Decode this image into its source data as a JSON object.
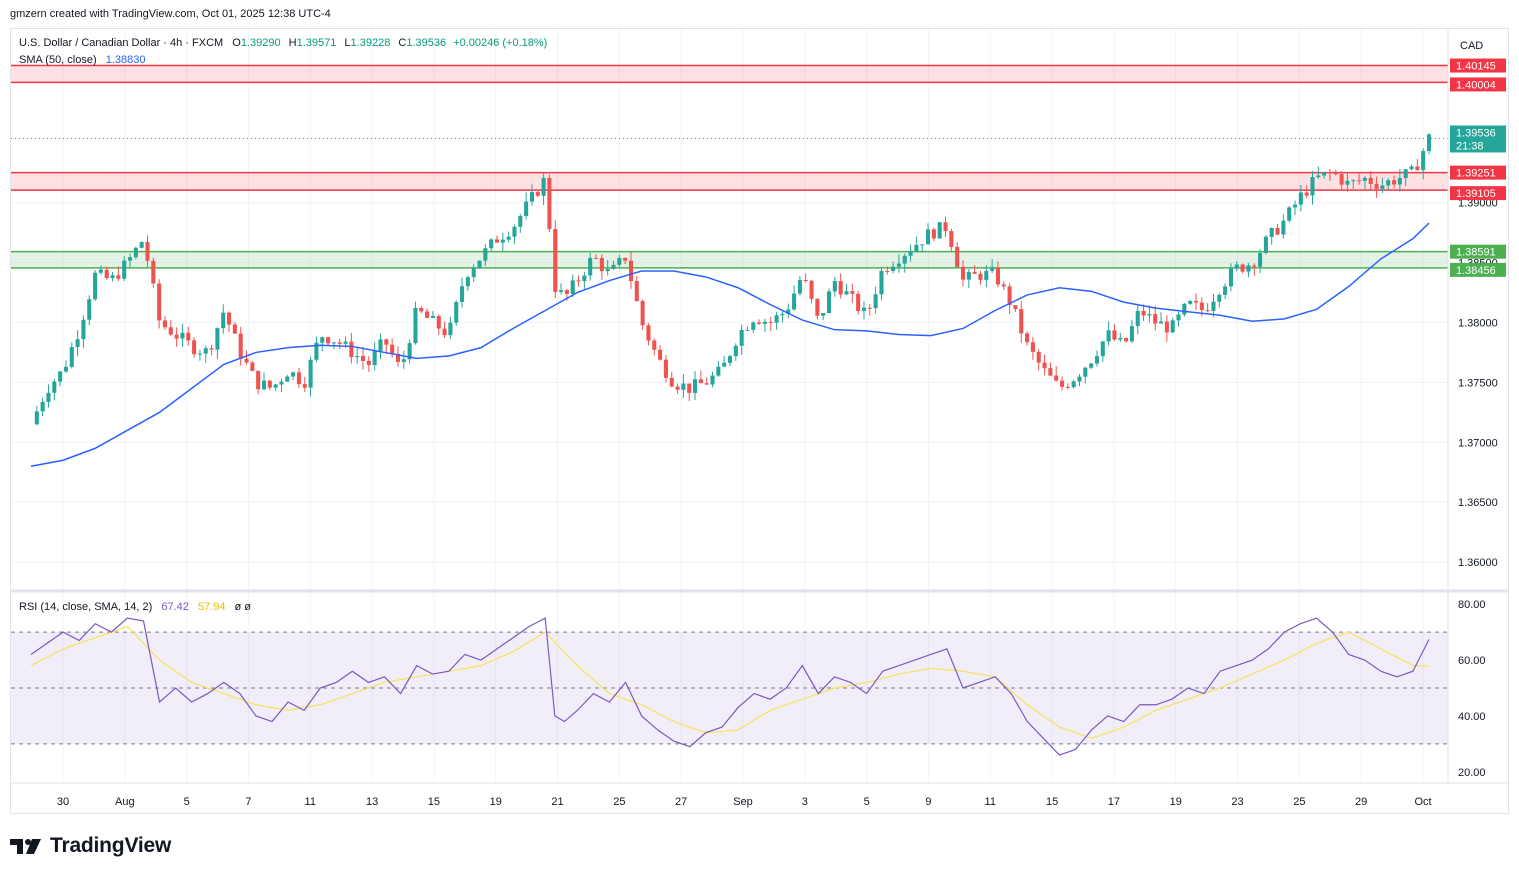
{
  "caption": "gmzern created with TradingView.com, Oct 01, 2025 12:38 UTC-4",
  "currency": "CAD",
  "brand": "TradingView",
  "legend": {
    "symbol": "U.S. Dollar / Canadian Dollar · 4h · FXCM",
    "o_label": "O",
    "o": "1.39290",
    "h_label": "H",
    "h": "1.39571",
    "l_label": "L",
    "l": "1.39228",
    "c_label": "C",
    "c": "1.39536",
    "change": "+0.00246 (+0.18%)",
    "sma_label": "SMA (50, close)",
    "sma_value": "1.38830",
    "rsi_label": "RSI (14, close, SMA, 14, 2)",
    "rsi_value": "67.42",
    "rsi_sma_value": "57.94",
    "rsi_extra": "ø ø"
  },
  "colors": {
    "up": "#26a69a",
    "down": "#ef5350",
    "sma": "#2962ff",
    "rsi": "#7e57c2",
    "rsi_ma": "#f7e35b",
    "resistance": "#f23645",
    "support": "#4caf50"
  },
  "chart_data": [
    {
      "type": "candlestick",
      "ylim": [
        1.3575,
        1.4045
      ],
      "y_ticks": [
        "1.36000",
        "1.36500",
        "1.37000",
        "1.37500",
        "1.38000",
        "1.38500",
        "1.39000"
      ],
      "x_ticks": [
        "30",
        "Aug",
        "5",
        "7",
        "11",
        "13",
        "15",
        "19",
        "21",
        "25",
        "27",
        "Sep",
        "3",
        "5",
        "9",
        "11",
        "15",
        "17",
        "19",
        "23",
        "25",
        "29",
        "Oct"
      ],
      "price_labels": [
        {
          "text": "1.40145",
          "value": 1.40145,
          "kind": "resistance"
        },
        {
          "text": "1.40004",
          "value": 1.40004,
          "kind": "resistance"
        },
        {
          "text": "1.39536",
          "value": 1.39536,
          "kind": "last"
        },
        {
          "text": "21:38",
          "value": 1.39536,
          "kind": "countdown"
        },
        {
          "text": "1.39251",
          "value": 1.39251,
          "kind": "resistance"
        },
        {
          "text": "1.39105",
          "value": 1.39105,
          "kind": "resistance"
        },
        {
          "text": "1.38591",
          "value": 1.38591,
          "kind": "support"
        },
        {
          "text": "1.38456",
          "value": 1.38456,
          "kind": "support"
        }
      ],
      "zones": [
        {
          "kind": "resistance",
          "low": 1.40004,
          "high": 1.40145
        },
        {
          "kind": "resistance",
          "low": 1.39105,
          "high": 1.39251
        },
        {
          "kind": "support",
          "low": 1.38456,
          "high": 1.38591
        }
      ],
      "last_price": 1.39536,
      "close_path": [
        [
          0,
          1.3715
        ],
        [
          0.5,
          1.3745
        ],
        [
          1,
          1.376
        ],
        [
          1.5,
          1.3795
        ],
        [
          2,
          1.384
        ],
        [
          2.5,
          1.3835
        ],
        [
          3,
          1.385
        ],
        [
          3.5,
          1.387
        ],
        [
          4,
          1.38
        ],
        [
          4.5,
          1.379
        ],
        [
          5,
          1.378
        ],
        [
          5.5,
          1.3775
        ],
        [
          6,
          1.381
        ],
        [
          6.5,
          1.3775
        ],
        [
          7,
          1.375
        ],
        [
          7.5,
          1.3745
        ],
        [
          8,
          1.376
        ],
        [
          8.5,
          1.375
        ],
        [
          9,
          1.379
        ],
        [
          9.5,
          1.3785
        ],
        [
          10,
          1.3775
        ],
        [
          10.5,
          1.3765
        ],
        [
          11,
          1.3785
        ],
        [
          11.5,
          1.376
        ],
        [
          12,
          1.381
        ],
        [
          12.5,
          1.38
        ],
        [
          13,
          1.379
        ],
        [
          13.5,
          1.384
        ],
        [
          14,
          1.3855
        ],
        [
          14.5,
          1.387
        ],
        [
          15,
          1.388
        ],
        [
          15.5,
          1.39
        ],
        [
          16,
          1.392
        ],
        [
          16.3,
          1.383
        ],
        [
          16.6,
          1.382
        ],
        [
          17,
          1.3835
        ],
        [
          17.5,
          1.3855
        ],
        [
          18,
          1.384
        ],
        [
          18.5,
          1.3855
        ],
        [
          19,
          1.38
        ],
        [
          19.5,
          1.377
        ],
        [
          20,
          1.375
        ],
        [
          20.5,
          1.3745
        ],
        [
          21,
          1.375
        ],
        [
          21.5,
          1.376
        ],
        [
          22,
          1.379
        ],
        [
          22.5,
          1.3805
        ],
        [
          23,
          1.38
        ],
        [
          23.5,
          1.381
        ],
        [
          24,
          1.384
        ],
        [
          24.5,
          1.38
        ],
        [
          25,
          1.3835
        ],
        [
          25.5,
          1.382
        ],
        [
          26,
          1.3805
        ],
        [
          26.5,
          1.3845
        ],
        [
          27,
          1.3855
        ],
        [
          27.5,
          1.3865
        ],
        [
          28,
          1.3875
        ],
        [
          28.5,
          1.388
        ],
        [
          29,
          1.3835
        ],
        [
          29.5,
          1.384
        ],
        [
          30,
          1.384
        ],
        [
          30.5,
          1.3815
        ],
        [
          31,
          1.378
        ],
        [
          31.5,
          1.376
        ],
        [
          32,
          1.3745
        ],
        [
          32.5,
          1.3755
        ],
        [
          33,
          1.377
        ],
        [
          33.5,
          1.379
        ],
        [
          34,
          1.378
        ],
        [
          34.5,
          1.381
        ],
        [
          35,
          1.38
        ],
        [
          35.5,
          1.3795
        ],
        [
          36,
          1.3815
        ],
        [
          36.5,
          1.381
        ],
        [
          37,
          1.383
        ],
        [
          37.5,
          1.3845
        ],
        [
          38,
          1.385
        ],
        [
          38.5,
          1.387
        ],
        [
          39,
          1.3885
        ],
        [
          39.5,
          1.3905
        ],
        [
          40,
          1.392
        ],
        [
          40.5,
          1.3925
        ],
        [
          41,
          1.3915
        ],
        [
          41.5,
          1.392
        ],
        [
          42,
          1.3915
        ],
        [
          42.5,
          1.392
        ],
        [
          43,
          1.3925
        ],
        [
          43.5,
          1.3954
        ]
      ],
      "sma_path": [
        [
          0,
          1.368
        ],
        [
          1,
          1.3685
        ],
        [
          2,
          1.3695
        ],
        [
          3,
          1.371
        ],
        [
          4,
          1.3725
        ],
        [
          5,
          1.3745
        ],
        [
          6,
          1.3765
        ],
        [
          7,
          1.3775
        ],
        [
          8,
          1.3779
        ],
        [
          9,
          1.3781
        ],
        [
          10,
          1.378
        ],
        [
          11,
          1.3775
        ],
        [
          12,
          1.377
        ],
        [
          13,
          1.3772
        ],
        [
          14,
          1.3779
        ],
        [
          15,
          1.3795
        ],
        [
          16,
          1.381
        ],
        [
          17,
          1.3825
        ],
        [
          18,
          1.3835
        ],
        [
          19,
          1.3843
        ],
        [
          20,
          1.3843
        ],
        [
          21,
          1.3838
        ],
        [
          22,
          1.3829
        ],
        [
          23,
          1.3815
        ],
        [
          24,
          1.3802
        ],
        [
          25,
          1.3794
        ],
        [
          26,
          1.3793
        ],
        [
          27,
          1.379
        ],
        [
          28,
          1.3789
        ],
        [
          29,
          1.3795
        ],
        [
          30,
          1.381
        ],
        [
          31,
          1.3823
        ],
        [
          32,
          1.3829
        ],
        [
          33,
          1.3826
        ],
        [
          34,
          1.3817
        ],
        [
          35,
          1.3812
        ],
        [
          36,
          1.3809
        ],
        [
          37,
          1.3806
        ],
        [
          38,
          1.3801
        ],
        [
          39,
          1.3803
        ],
        [
          40,
          1.3811
        ],
        [
          41,
          1.383
        ],
        [
          42,
          1.3853
        ],
        [
          43,
          1.387
        ],
        [
          43.5,
          1.3883
        ]
      ]
    },
    {
      "type": "line",
      "name": "RSI",
      "ylim": [
        16,
        84
      ],
      "y_ticks": [
        "80.00",
        "60.00",
        "40.00",
        "20.00"
      ],
      "band": [
        30,
        70
      ],
      "midline": 50,
      "rsi_path": [
        [
          0,
          62
        ],
        [
          0.5,
          66
        ],
        [
          1,
          70
        ],
        [
          1.5,
          67
        ],
        [
          2,
          73
        ],
        [
          2.5,
          70
        ],
        [
          3,
          75
        ],
        [
          3.5,
          74
        ],
        [
          4,
          45
        ],
        [
          4.5,
          50
        ],
        [
          5,
          45
        ],
        [
          5.5,
          48
        ],
        [
          6,
          52
        ],
        [
          6.5,
          48
        ],
        [
          7,
          40
        ],
        [
          7.5,
          38
        ],
        [
          8,
          45
        ],
        [
          8.5,
          42
        ],
        [
          9,
          50
        ],
        [
          9.5,
          52
        ],
        [
          10,
          56
        ],
        [
          10.5,
          52
        ],
        [
          11,
          54
        ],
        [
          11.5,
          48
        ],
        [
          12,
          58
        ],
        [
          12.5,
          55
        ],
        [
          13,
          56
        ],
        [
          13.5,
          62
        ],
        [
          14,
          60
        ],
        [
          14.5,
          64
        ],
        [
          15,
          68
        ],
        [
          15.5,
          72
        ],
        [
          16,
          75
        ],
        [
          16.3,
          40
        ],
        [
          16.6,
          38
        ],
        [
          17,
          42
        ],
        [
          17.5,
          48
        ],
        [
          18,
          45
        ],
        [
          18.5,
          52
        ],
        [
          19,
          40
        ],
        [
          19.5,
          35
        ],
        [
          20,
          31
        ],
        [
          20.5,
          29
        ],
        [
          21,
          34
        ],
        [
          21.5,
          36
        ],
        [
          22,
          43
        ],
        [
          22.5,
          48
        ],
        [
          23,
          46
        ],
        [
          23.5,
          50
        ],
        [
          24,
          58
        ],
        [
          24.5,
          48
        ],
        [
          25,
          54
        ],
        [
          25.5,
          52
        ],
        [
          26,
          48
        ],
        [
          26.5,
          56
        ],
        [
          27,
          58
        ],
        [
          27.5,
          60
        ],
        [
          28,
          62
        ],
        [
          28.5,
          64
        ],
        [
          29,
          50
        ],
        [
          29.5,
          52
        ],
        [
          30,
          54
        ],
        [
          30.5,
          48
        ],
        [
          31,
          38
        ],
        [
          31.5,
          32
        ],
        [
          32,
          26
        ],
        [
          32.5,
          28
        ],
        [
          33,
          35
        ],
        [
          33.5,
          40
        ],
        [
          34,
          38
        ],
        [
          34.5,
          44
        ],
        [
          35,
          44
        ],
        [
          35.5,
          46
        ],
        [
          36,
          50
        ],
        [
          36.5,
          48
        ],
        [
          37,
          56
        ],
        [
          37.5,
          58
        ],
        [
          38,
          60
        ],
        [
          38.5,
          64
        ],
        [
          39,
          70
        ],
        [
          39.5,
          73
        ],
        [
          40,
          75
        ],
        [
          40.5,
          70
        ],
        [
          41,
          62
        ],
        [
          41.5,
          60
        ],
        [
          42,
          56
        ],
        [
          42.5,
          54
        ],
        [
          43,
          56
        ],
        [
          43.5,
          67.4
        ]
      ],
      "rsi_ma_path": [
        [
          0,
          58
        ],
        [
          1,
          64
        ],
        [
          2,
          68
        ],
        [
          3,
          72
        ],
        [
          4,
          60
        ],
        [
          5,
          52
        ],
        [
          6,
          48
        ],
        [
          7,
          44
        ],
        [
          8,
          42
        ],
        [
          9,
          44
        ],
        [
          10,
          48
        ],
        [
          11,
          52
        ],
        [
          12,
          54
        ],
        [
          13,
          56
        ],
        [
          14,
          58
        ],
        [
          15,
          63
        ],
        [
          16,
          70
        ],
        [
          17,
          58
        ],
        [
          18,
          48
        ],
        [
          19,
          44
        ],
        [
          20,
          38
        ],
        [
          21,
          34
        ],
        [
          22,
          35
        ],
        [
          23,
          42
        ],
        [
          24,
          46
        ],
        [
          25,
          50
        ],
        [
          26,
          52
        ],
        [
          27,
          55
        ],
        [
          28,
          57
        ],
        [
          29,
          56
        ],
        [
          30,
          54
        ],
        [
          31,
          44
        ],
        [
          32,
          36
        ],
        [
          33,
          32
        ],
        [
          34,
          36
        ],
        [
          35,
          42
        ],
        [
          36,
          46
        ],
        [
          37,
          50
        ],
        [
          38,
          55
        ],
        [
          39,
          60
        ],
        [
          40,
          66
        ],
        [
          41,
          70
        ],
        [
          42,
          64
        ],
        [
          43,
          58
        ],
        [
          43.5,
          57.9
        ]
      ]
    }
  ]
}
